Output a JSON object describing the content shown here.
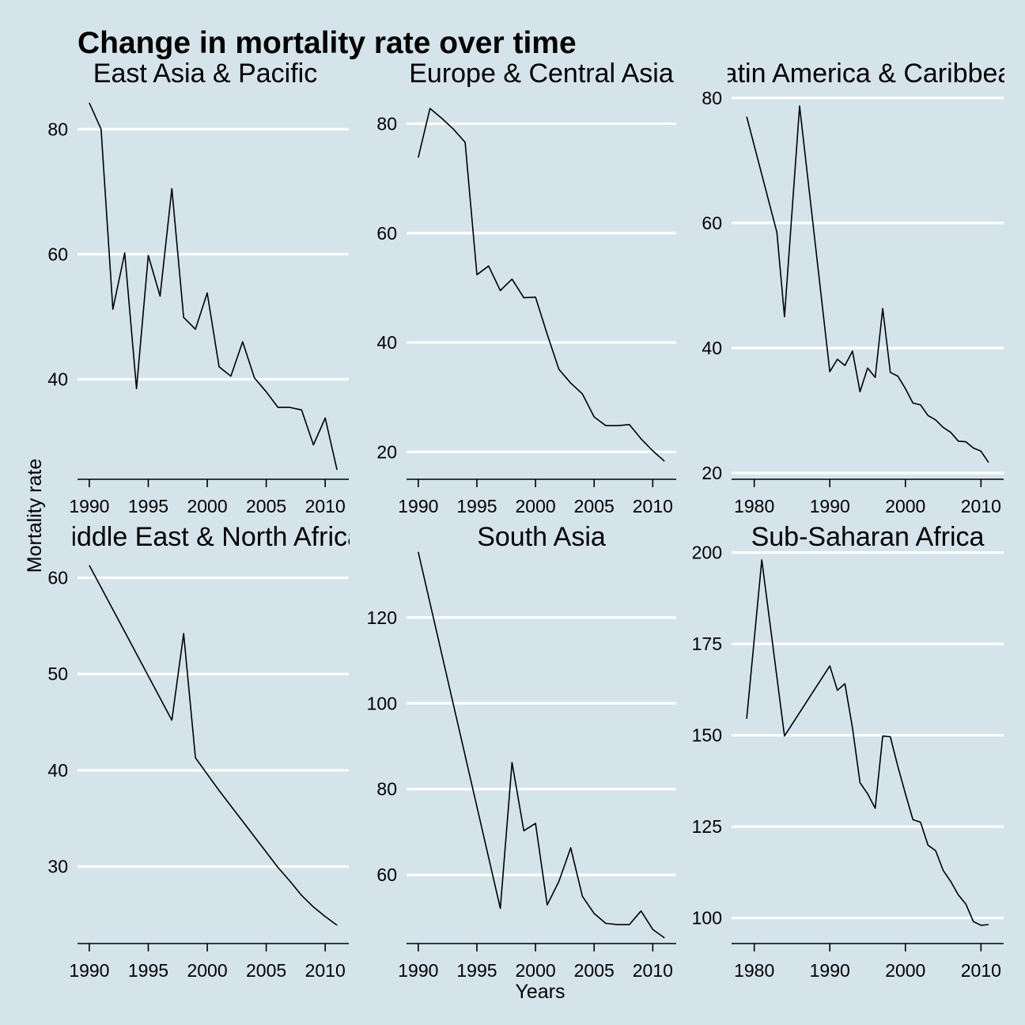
{
  "title": "Change in mortality rate over time",
  "xlabel": "Years",
  "ylabel": "Mortality rate",
  "colors": {
    "background": "#d5e4eb",
    "grid": "#ffffff",
    "line": "#000000"
  },
  "chart_data": [
    {
      "type": "line",
      "title": "East Asia & Pacific",
      "xlim": [
        1989,
        2012
      ],
      "ylim": [
        24,
        87
      ],
      "xticks": [
        1990,
        1995,
        2000,
        2005,
        2010
      ],
      "yticks": [
        40,
        60,
        80
      ],
      "x": [
        1990,
        1991,
        1992,
        1993,
        1994,
        1995,
        1996,
        1997,
        1998,
        1999,
        2000,
        2001,
        2002,
        2003,
        2004,
        2005,
        2006,
        2007,
        2008,
        2009,
        2010,
        2011
      ],
      "y": [
        84.2,
        80.0,
        51.2,
        60.2,
        38.5,
        59.8,
        53.3,
        70.5,
        49.9,
        48.0,
        53.8,
        42.0,
        40.5,
        46.0,
        40.2,
        38.0,
        35.5,
        35.5,
        35.1,
        29.5,
        33.8,
        25.5
      ],
      "grid": true
    },
    {
      "type": "line",
      "title": "Europe & Central Asia",
      "xlim": [
        1989,
        2012
      ],
      "ylim": [
        15,
        87
      ],
      "xticks": [
        1990,
        1995,
        2000,
        2005,
        2010
      ],
      "yticks": [
        20,
        40,
        60,
        80
      ],
      "x": [
        1990,
        1991,
        1992,
        1993,
        1994,
        1995,
        1996,
        1997,
        1998,
        1999,
        2000,
        2001,
        2002,
        2003,
        2004,
        2005,
        2006,
        2007,
        2008,
        2009,
        2010,
        2011
      ],
      "y": [
        73.8,
        82.8,
        81.0,
        79.0,
        76.6,
        52.4,
        54.0,
        49.5,
        51.6,
        48.2,
        48.3,
        41.5,
        35.1,
        32.6,
        30.6,
        26.4,
        24.8,
        24.8,
        25.0,
        22.4,
        20.2,
        18.3
      ],
      "grid": true
    },
    {
      "type": "line",
      "title": "Latin America & Caribbean",
      "xlim": [
        1977,
        2013
      ],
      "ylim": [
        19,
        82
      ],
      "xticks": [
        1980,
        1990,
        2000,
        2010
      ],
      "yticks": [
        20,
        40,
        60,
        80
      ],
      "x": [
        1979,
        1983,
        1984,
        1986,
        1990,
        1991,
        1992,
        1993,
        1994,
        1995,
        1996,
        1997,
        1998,
        1999,
        2000,
        2001,
        2002,
        2003,
        2004,
        2005,
        2006,
        2007,
        2008,
        2009,
        2010,
        2011
      ],
      "y": [
        77.0,
        58.5,
        45.0,
        78.7,
        36.2,
        38.2,
        37.2,
        39.5,
        33.0,
        36.8,
        35.3,
        46.3,
        36.1,
        35.5,
        33.5,
        31.2,
        30.9,
        29.2,
        28.5,
        27.3,
        26.5,
        25.1,
        25.0,
        24.0,
        23.5,
        21.7
      ],
      "grid": true
    },
    {
      "type": "line",
      "title": "Middle East & North Africa",
      "xlim": [
        1989,
        2012
      ],
      "ylim": [
        22,
        63
      ],
      "xticks": [
        1990,
        1995,
        2000,
        2005,
        2010
      ],
      "yticks": [
        30,
        40,
        50,
        60
      ],
      "x": [
        1990,
        1997,
        1998,
        1999,
        2000,
        2001,
        2002,
        2003,
        2004,
        2005,
        2006,
        2007,
        2008,
        2009,
        2010,
        2011
      ],
      "y": [
        61.3,
        45.2,
        54.2,
        41.3,
        39.6,
        37.9,
        36.3,
        34.7,
        33.1,
        31.5,
        29.9,
        28.5,
        27.0,
        25.8,
        24.8,
        23.9
      ],
      "grid": true
    },
    {
      "type": "line",
      "title": "South Asia",
      "xlim": [
        1989,
        2012
      ],
      "ylim": [
        44,
        136
      ],
      "xticks": [
        1990,
        1995,
        2000,
        2005,
        2010
      ],
      "yticks": [
        60,
        80,
        100,
        120
      ],
      "x": [
        1990,
        1997,
        1998,
        1999,
        2000,
        2001,
        2002,
        2003,
        2004,
        2005,
        2006,
        2007,
        2008,
        2009,
        2010,
        2011
      ],
      "y": [
        135.3,
        52.2,
        86.2,
        70.3,
        72.0,
        53.0,
        58.5,
        66.3,
        55.0,
        51.0,
        48.7,
        48.4,
        48.4,
        51.6,
        47.3,
        45.3
      ],
      "grid": true
    },
    {
      "type": "line",
      "title": "Sub-Saharan Africa",
      "xlim": [
        1977,
        2013
      ],
      "ylim": [
        93,
        201
      ],
      "xticks": [
        1980,
        1990,
        2000,
        2010
      ],
      "yticks": [
        100,
        125,
        150,
        175,
        200
      ],
      "x": [
        1979,
        1981,
        1984,
        1990,
        1991,
        1992,
        1993,
        1994,
        1995,
        1996,
        1997,
        1998,
        1999,
        2000,
        2001,
        2002,
        2003,
        2004,
        2005,
        2006,
        2007,
        2008,
        2009,
        2010,
        2011
      ],
      "y": [
        154.5,
        198.0,
        149.8,
        169.0,
        162.3,
        164.1,
        152.0,
        137.0,
        134.0,
        130.0,
        149.8,
        149.6,
        141.5,
        134.0,
        126.9,
        126.2,
        119.9,
        118.4,
        113.0,
        110.0,
        106.3,
        103.8,
        99.0,
        98.0,
        98.2
      ],
      "grid": true
    }
  ]
}
